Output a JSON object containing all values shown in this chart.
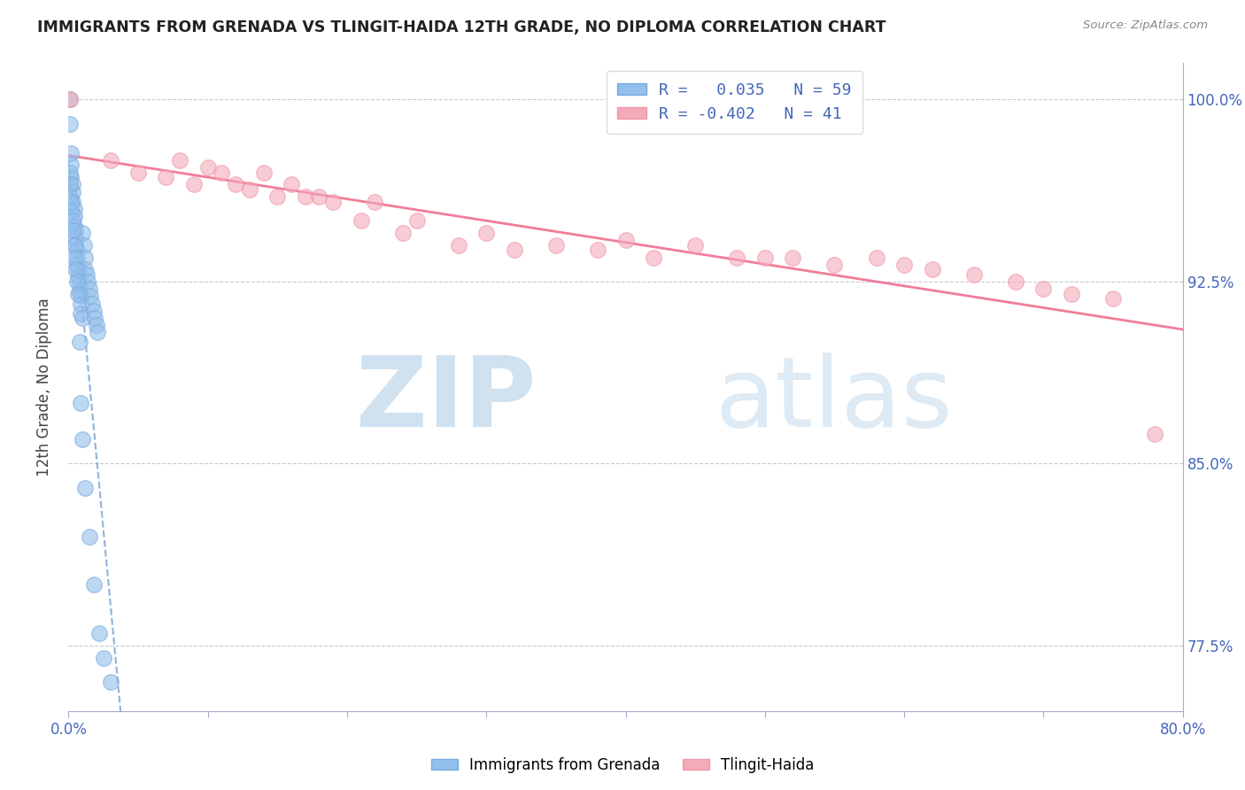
{
  "title": "IMMIGRANTS FROM GRENADA VS TLINGIT-HAIDA 12TH GRADE, NO DIPLOMA CORRELATION CHART",
  "source": "Source: ZipAtlas.com",
  "ylabel": "12th Grade, No Diploma",
  "legend_label1": "Immigrants from Grenada",
  "legend_label2": "Tlingit-Haida",
  "R1": 0.035,
  "N1": 59,
  "R2": -0.402,
  "N2": 41,
  "blue_color": "#92BFEC",
  "pink_color": "#F4AABA",
  "blue_line_color": "#5588CC",
  "pink_line_color": "#EE6688",
  "blue_scatter_edge": "#7AABDD",
  "pink_scatter_edge": "#EE99AA",
  "blue_x": [
    0.001,
    0.001,
    0.002,
    0.002,
    0.002,
    0.003,
    0.003,
    0.003,
    0.004,
    0.004,
    0.004,
    0.005,
    0.005,
    0.005,
    0.006,
    0.006,
    0.006,
    0.007,
    0.007,
    0.008,
    0.008,
    0.009,
    0.009,
    0.009,
    0.01,
    0.01,
    0.011,
    0.012,
    0.012,
    0.013,
    0.014,
    0.015,
    0.016,
    0.017,
    0.018,
    0.019,
    0.02,
    0.021,
    0.001,
    0.001,
    0.001,
    0.002,
    0.002,
    0.003,
    0.003,
    0.004,
    0.004,
    0.005,
    0.006,
    0.007,
    0.008,
    0.009,
    0.01,
    0.012,
    0.015,
    0.018,
    0.022,
    0.025,
    0.03
  ],
  "blue_y": [
    1.0,
    0.99,
    0.978,
    0.973,
    0.968,
    0.965,
    0.962,
    0.958,
    0.955,
    0.952,
    0.948,
    0.946,
    0.943,
    0.94,
    0.938,
    0.935,
    0.932,
    0.93,
    0.927,
    0.924,
    0.921,
    0.919,
    0.916,
    0.912,
    0.91,
    0.945,
    0.94,
    0.935,
    0.93,
    0.928,
    0.925,
    0.922,
    0.919,
    0.916,
    0.913,
    0.91,
    0.907,
    0.904,
    0.97,
    0.965,
    0.96,
    0.958,
    0.954,
    0.95,
    0.946,
    0.94,
    0.935,
    0.93,
    0.925,
    0.92,
    0.9,
    0.875,
    0.86,
    0.84,
    0.82,
    0.8,
    0.78,
    0.77,
    0.76
  ],
  "pink_x": [
    0.001,
    0.03,
    0.05,
    0.07,
    0.08,
    0.09,
    0.1,
    0.11,
    0.12,
    0.13,
    0.14,
    0.15,
    0.16,
    0.17,
    0.18,
    0.19,
    0.21,
    0.22,
    0.24,
    0.25,
    0.28,
    0.3,
    0.32,
    0.35,
    0.38,
    0.4,
    0.42,
    0.45,
    0.48,
    0.5,
    0.52,
    0.55,
    0.58,
    0.6,
    0.62,
    0.65,
    0.68,
    0.7,
    0.72,
    0.75,
    0.78
  ],
  "pink_y": [
    1.0,
    0.975,
    0.97,
    0.968,
    0.975,
    0.965,
    0.972,
    0.97,
    0.965,
    0.963,
    0.97,
    0.96,
    0.965,
    0.96,
    0.96,
    0.958,
    0.95,
    0.958,
    0.945,
    0.95,
    0.94,
    0.945,
    0.938,
    0.94,
    0.938,
    0.942,
    0.935,
    0.94,
    0.935,
    0.935,
    0.935,
    0.932,
    0.935,
    0.932,
    0.93,
    0.928,
    0.925,
    0.922,
    0.92,
    0.918,
    0.862
  ],
  "xmin": 0.0,
  "xmax": 0.8,
  "ymin": 0.748,
  "ymax": 1.015,
  "y_ticks": [
    0.775,
    0.85,
    0.925,
    1.0
  ],
  "y_tick_labels": [
    "77.5%",
    "85.0%",
    "92.5%",
    "100.0%"
  ],
  "x_tick_positions": [
    0.0,
    0.1,
    0.2,
    0.3,
    0.4,
    0.5,
    0.6,
    0.7,
    0.8
  ],
  "axis_color": "#AAAACC",
  "grid_color": "#BBBBCC",
  "tick_label_color": "#4466BB",
  "background_color": "#FFFFFF"
}
